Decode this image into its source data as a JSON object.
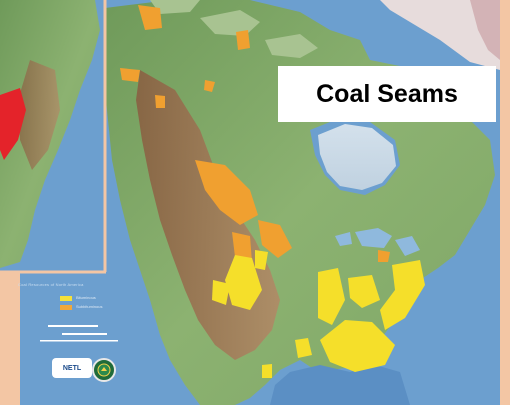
{
  "map": {
    "title": "Coal Seams",
    "legend": {
      "heading": "Coal Resources of North America",
      "items": [
        {
          "label": "Bituminous",
          "color": "#f5e13a"
        },
        {
          "label": "Subbituminous",
          "color": "#f0a83a"
        }
      ]
    },
    "logos": {
      "netl": "NETL",
      "doe": "DOE"
    },
    "colors": {
      "ocean": "#6c9fcf",
      "land": "#8fb56f",
      "mountains": "#9a6a4a",
      "coal_yellow": "#f5df2a",
      "coal_orange": "#f0a030",
      "border": "#f3c6a4"
    }
  }
}
